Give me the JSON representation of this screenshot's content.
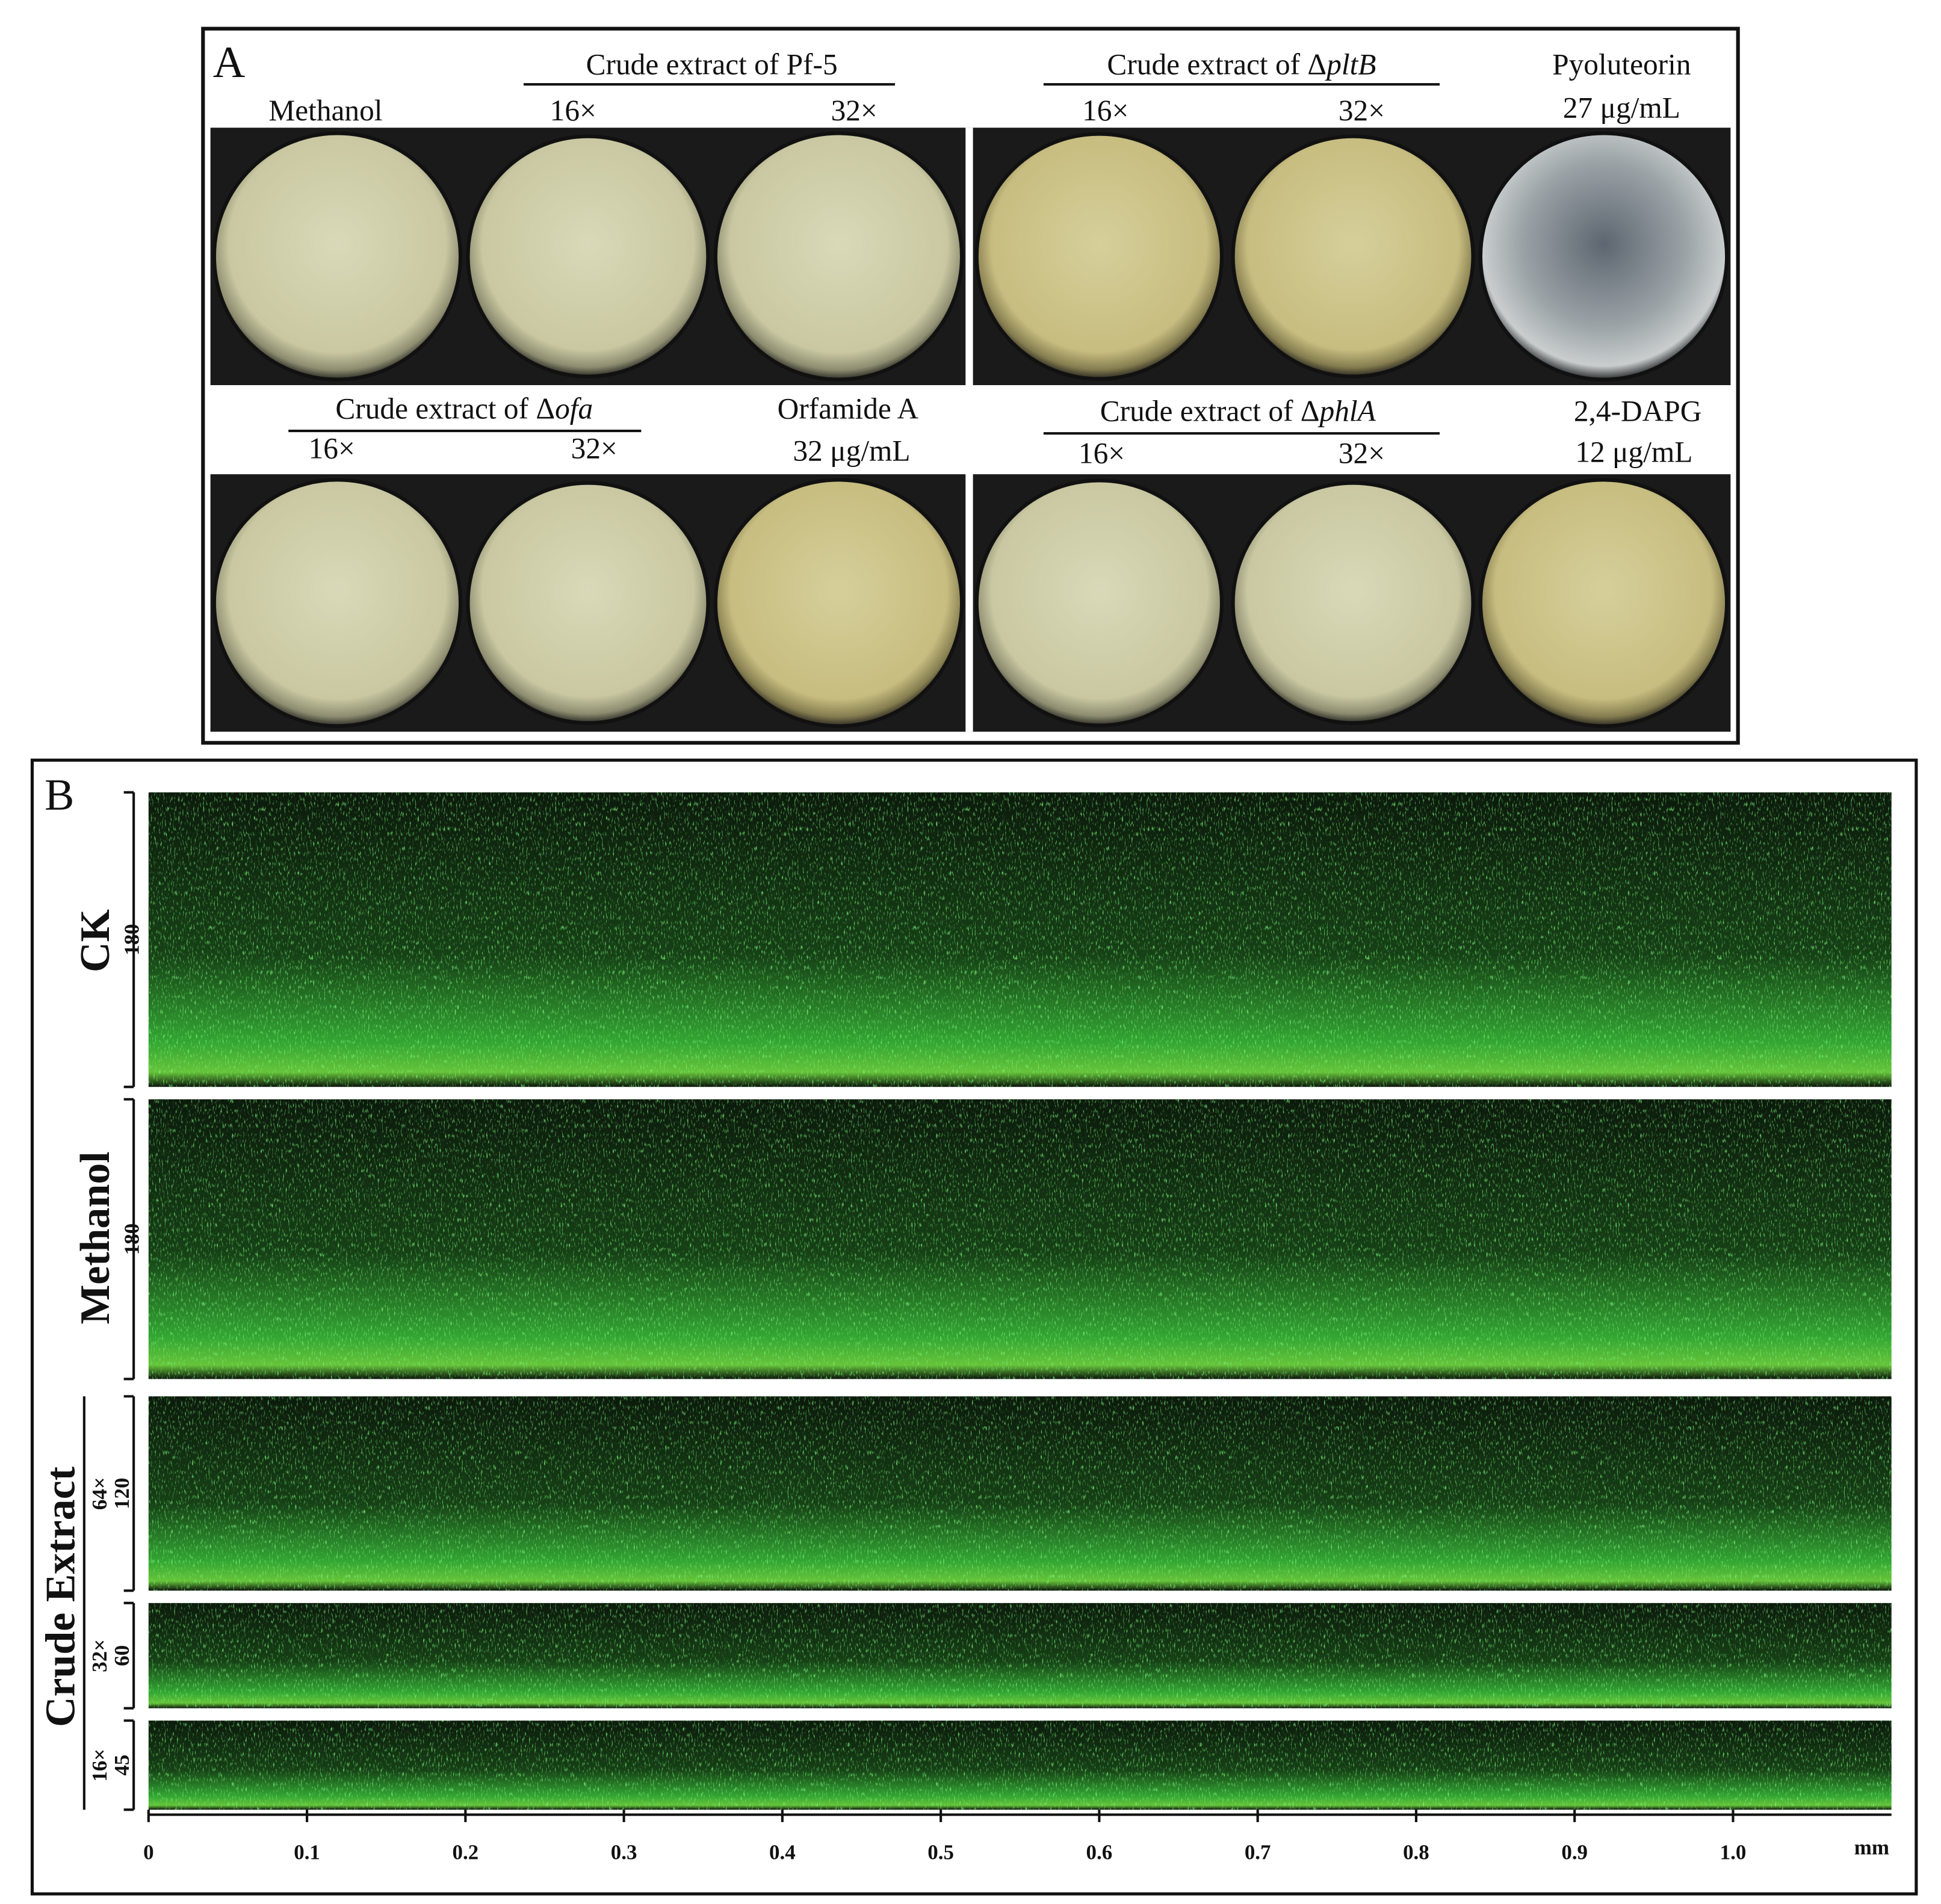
{
  "panel_a": {
    "label": "A",
    "top_row": {
      "methanol": "Methanol",
      "pf5_header": "Crude extract of Pf-5",
      "pf5_16": "16×",
      "pf5_32": "32×",
      "pltb_header": {
        "prefix": "Crude extract of Δ",
        "italic": "pltB"
      },
      "pltb_16": "16×",
      "pltb_32": "32×",
      "pyoluteorin": "Pyoluteorin",
      "pyoluteorin_conc": "27 μg/mL"
    },
    "bottom_row": {
      "ofa_header": {
        "prefix": "Crude extract of Δ",
        "italic": "ofa"
      },
      "ofa_16": "16×",
      "ofa_32": "32×",
      "orfamide": "Orfamide A",
      "orfamide_conc": "32 μg/mL",
      "phla_header": {
        "prefix": "Crude extract of Δ",
        "italic": "phlA"
      },
      "phla_16": "16×",
      "phla_32": "32×",
      "dapg": "2,4-DAPG",
      "dapg_conc": "12 μg/mL"
    }
  },
  "panel_b": {
    "label": "B",
    "rows": [
      {
        "name": "CK",
        "depth": 180
      },
      {
        "name": "Methanol",
        "depth": 180
      }
    ],
    "crude_extract": {
      "name": "Crude Extract",
      "rows": [
        {
          "dose": "64×",
          "depth": 120
        },
        {
          "dose": "32×",
          "depth": 60
        },
        {
          "dose": "16×",
          "depth": 45
        }
      ]
    },
    "xlim": [
      0,
      1.1
    ],
    "x_ticks": [
      0,
      0.1,
      0.2,
      0.3,
      0.4,
      0.5,
      0.6,
      0.7,
      0.8,
      0.9,
      {
        "value": 1,
        "label": "1.0"
      }
    ],
    "x_unit": "mm"
  }
}
